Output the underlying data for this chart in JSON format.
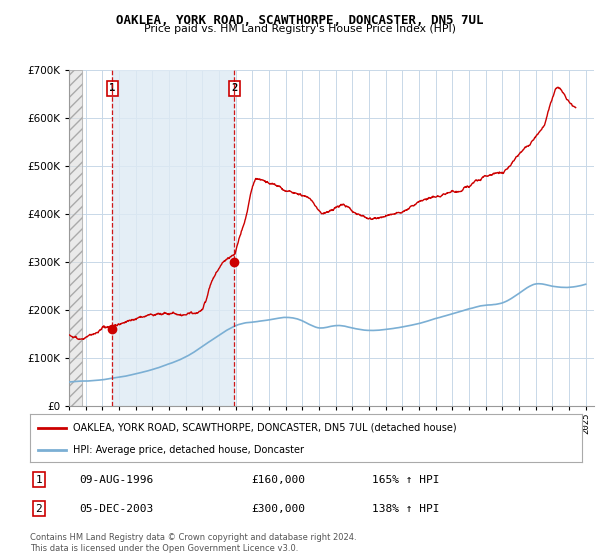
{
  "title": "OAKLEA, YORK ROAD, SCAWTHORPE, DONCASTER, DN5 7UL",
  "subtitle": "Price paid vs. HM Land Registry's House Price Index (HPI)",
  "legend_line1": "OAKLEA, YORK ROAD, SCAWTHORPE, DONCASTER, DN5 7UL (detached house)",
  "legend_line2": "HPI: Average price, detached house, Doncaster",
  "footnote": "Contains HM Land Registry data © Crown copyright and database right 2024.\nThis data is licensed under the Open Government Licence v3.0.",
  "transaction1": {
    "num": "1",
    "date": "09-AUG-1996",
    "price": "£160,000",
    "hpi": "165% ↑ HPI"
  },
  "transaction2": {
    "num": "2",
    "date": "05-DEC-2003",
    "price": "£300,000",
    "hpi": "138% ↑ HPI"
  },
  "hpi_color": "#7bafd4",
  "price_color": "#cc0000",
  "marker_color": "#cc0000",
  "background_color": "#ffffff",
  "grid_color": "#c8d8e8",
  "shade_color": "#deeaf4",
  "hatch_color": "#c8c8c8",
  "ylim": [
    0,
    700000
  ],
  "xlim_start": 1994.0,
  "xlim_end": 2025.5,
  "transaction1_x": 1996.6,
  "transaction1_y": 160000,
  "transaction2_x": 2003.92,
  "transaction2_y": 300000
}
